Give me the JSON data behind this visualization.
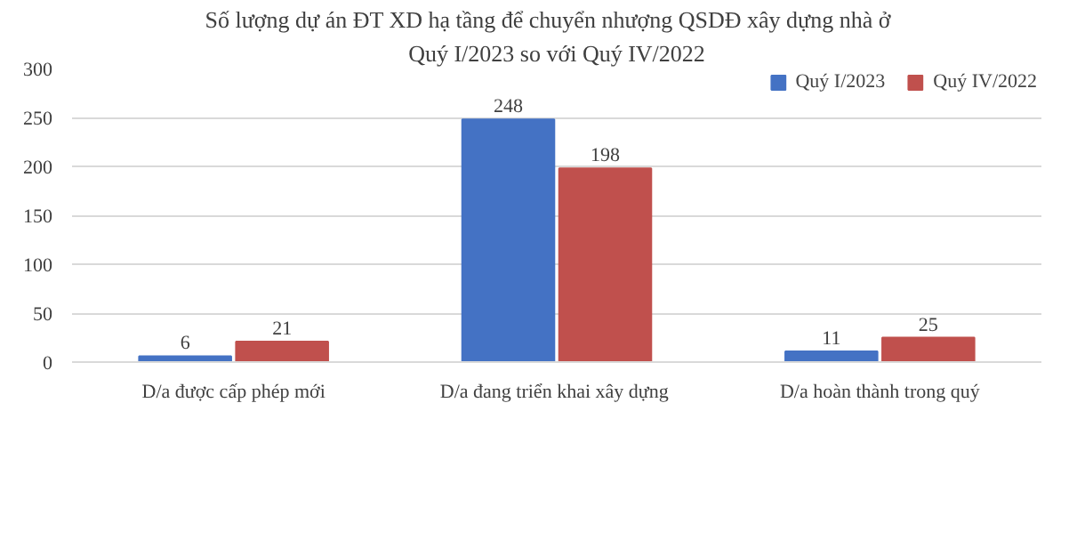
{
  "chart_data": {
    "type": "bar",
    "title": "Số lượng  dự án ĐT XD hạ tầng để chuyển  nhượng  QSDĐ xây dựng nhà ở",
    "subtitle": "Quý I/2023 so với Quý IV/2022",
    "categories": [
      "D/a được cấp phép mới",
      "D/a đang  triển khai xây dựng",
      "D/a hoàn thành trong quý"
    ],
    "series": [
      {
        "name": "Quý I/2023",
        "color": "#4472c4",
        "values": [
          6,
          248,
          11
        ]
      },
      {
        "name": "Quý IV/2022",
        "color": "#c0504d",
        "values": [
          21,
          198,
          25
        ]
      }
    ],
    "ylim": [
      0,
      300
    ],
    "yticks": [
      0,
      50,
      100,
      150,
      200,
      250,
      300
    ],
    "grid": "y",
    "legend": "top right",
    "data_labels": true
  }
}
